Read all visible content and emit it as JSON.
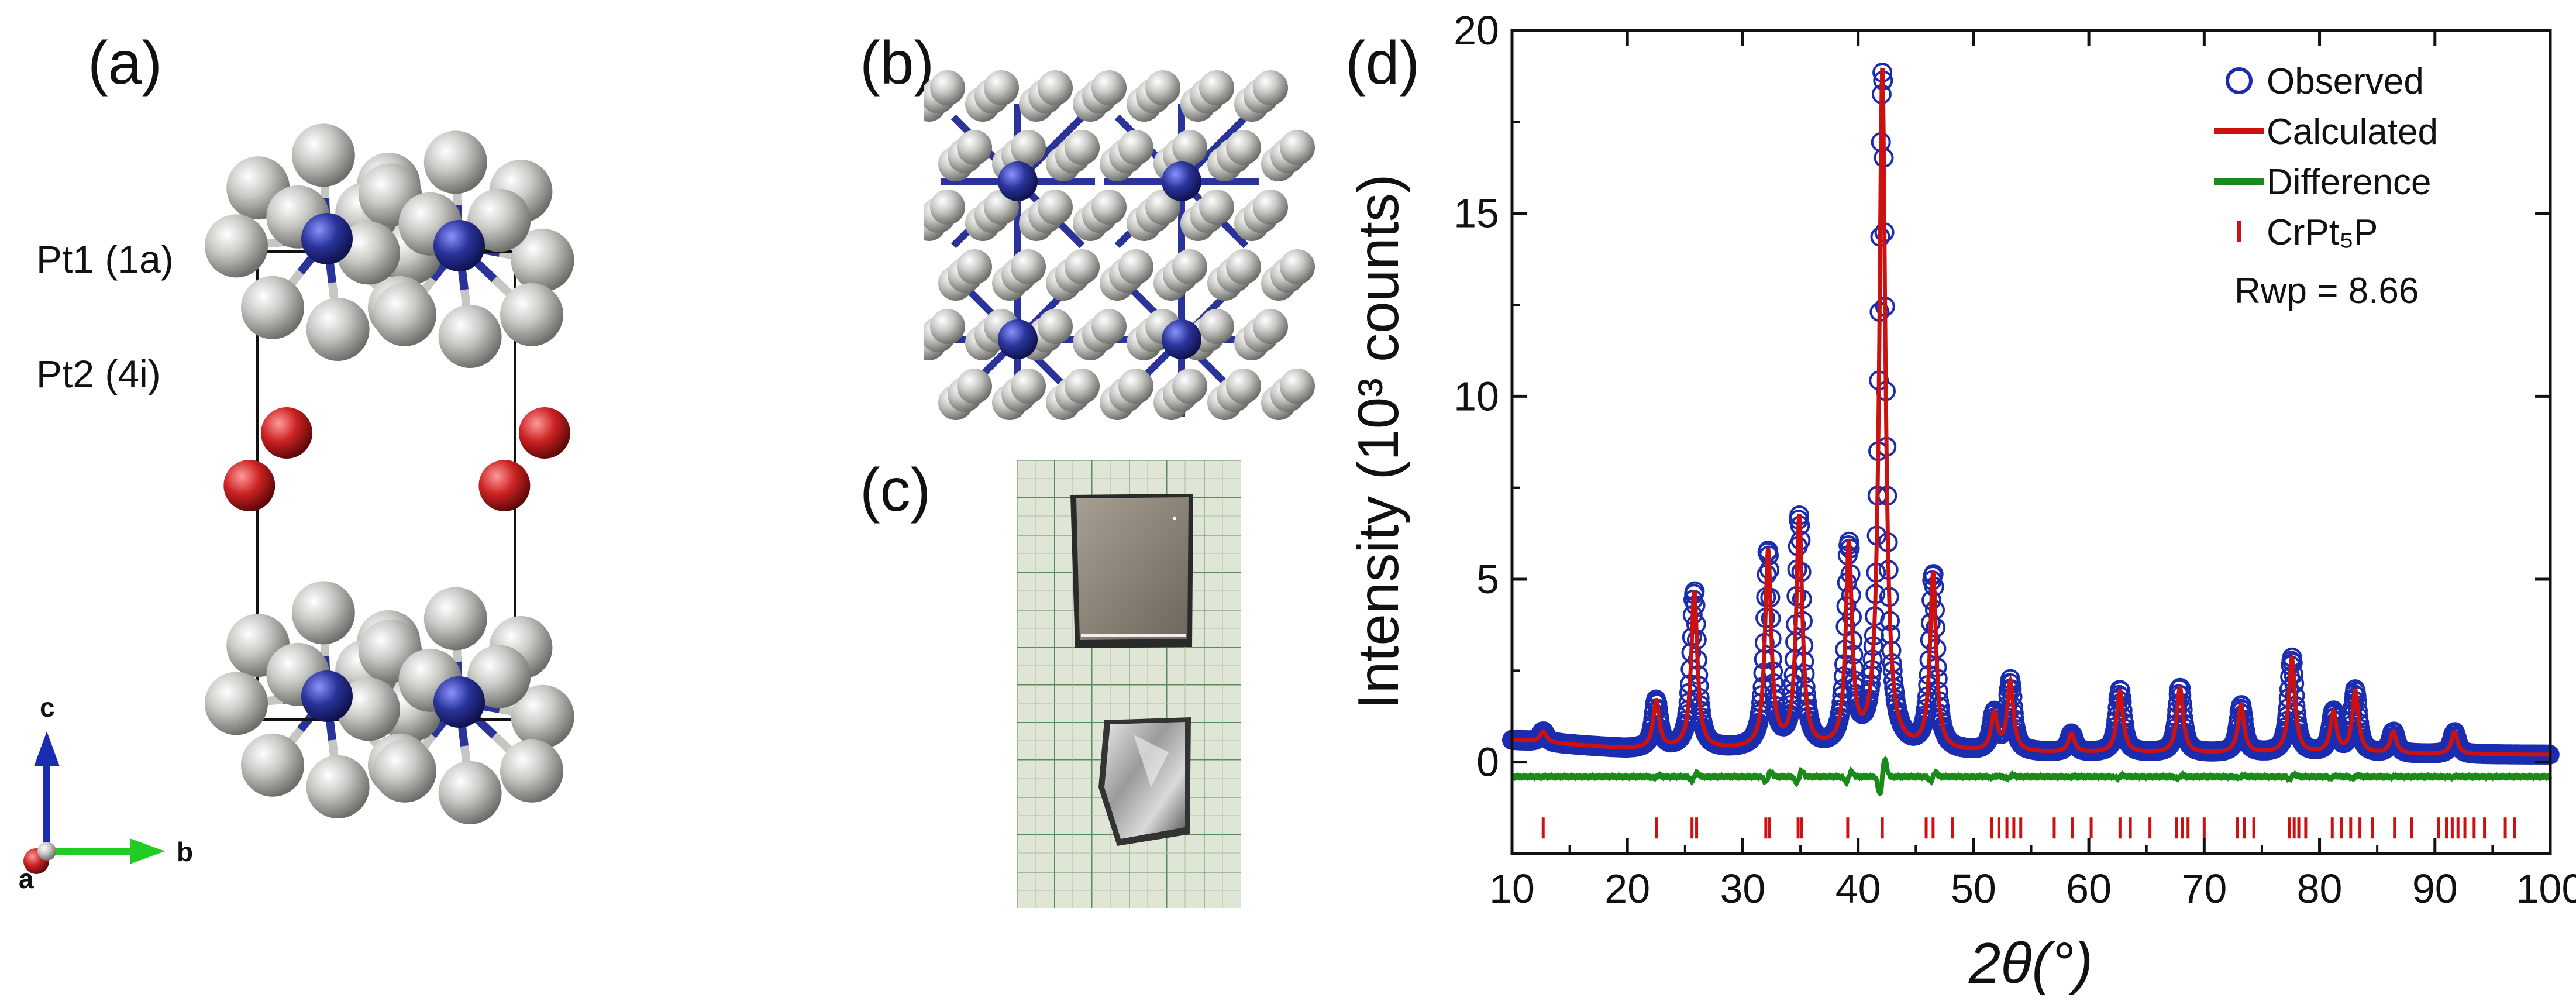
{
  "panels": {
    "a_label": "(a)",
    "b_label": "(b)",
    "c_label": "(c)",
    "d_label": "(d)"
  },
  "structure": {
    "site1": "Pt1 (1a)",
    "site2": "Pt2 (4i)",
    "axis_c": "c",
    "axis_b": "b",
    "axis_a": "a",
    "colors": {
      "pt": "#b8b8b4",
      "cr": "#2a3399",
      "p": "#cc2222",
      "bond": "#2a3399"
    }
  },
  "chart_data": {
    "type": "line",
    "xlabel": "2θ(°)",
    "ylabel": "Intensity (10³ counts)",
    "xlim": [
      10,
      100
    ],
    "ylim": [
      -2.5,
      20
    ],
    "xticks": [
      "10",
      "20",
      "30",
      "40",
      "50",
      "60",
      "70",
      "80",
      "90",
      "100"
    ],
    "yticks": [
      "0",
      "5",
      "10",
      "15",
      "20"
    ],
    "legend": [
      "Observed",
      "Calculated",
      "Difference",
      "CrPt₅P"
    ],
    "legend_position": "top-right",
    "annotation": "Rwp = 8.66",
    "colors": {
      "observed": "#1a2db0",
      "calculated": "#cc1111",
      "difference": "#1a8a1a",
      "ticks": "#cc1111"
    },
    "peaks": [
      {
        "x": 12.7,
        "h": 0.3
      },
      {
        "x": 22.5,
        "h": 1.3
      },
      {
        "x": 25.8,
        "h": 4.3
      },
      {
        "x": 32.2,
        "h": 5.4
      },
      {
        "x": 34.9,
        "h": 6.3
      },
      {
        "x": 39.2,
        "h": 5.5
      },
      {
        "x": 42.1,
        "h": 18.6
      },
      {
        "x": 46.5,
        "h": 4.8
      },
      {
        "x": 51.8,
        "h": 1.0
      },
      {
        "x": 53.2,
        "h": 1.9
      },
      {
        "x": 58.5,
        "h": 0.5
      },
      {
        "x": 62.7,
        "h": 1.7
      },
      {
        "x": 67.9,
        "h": 1.8
      },
      {
        "x": 73.2,
        "h": 1.3
      },
      {
        "x": 77.6,
        "h": 2.6
      },
      {
        "x": 81.2,
        "h": 1.1
      },
      {
        "x": 83.1,
        "h": 1.7
      },
      {
        "x": 86.4,
        "h": 0.6
      },
      {
        "x": 91.7,
        "h": 0.6
      }
    ],
    "background": [
      {
        "x": 10,
        "y": 0.6
      },
      {
        "x": 20,
        "y": 0.35
      },
      {
        "x": 50,
        "y": 0.25
      },
      {
        "x": 100,
        "y": 0.2
      }
    ],
    "difference_baseline": -0.4,
    "bragg_tick_y": -1.8,
    "bragg_positions": [
      12.7,
      22.5,
      25.6,
      26.0,
      32.0,
      32.3,
      34.8,
      35.1,
      39.1,
      42.1,
      45.9,
      46.5,
      48.2,
      51.6,
      52.2,
      52.9,
      53.5,
      54.1,
      57.0,
      58.6,
      60.2,
      62.7,
      63.6,
      65.3,
      67.6,
      68.1,
      68.6,
      70.0,
      72.9,
      73.5,
      74.3,
      77.4,
      77.8,
      78.2,
      78.8,
      81.1,
      81.9,
      82.7,
      83.5,
      84.6,
      86.5,
      88.0,
      90.3,
      91.0,
      91.5,
      92.0,
      92.6,
      93.4,
      94.3,
      96.1,
      96.9
    ]
  }
}
